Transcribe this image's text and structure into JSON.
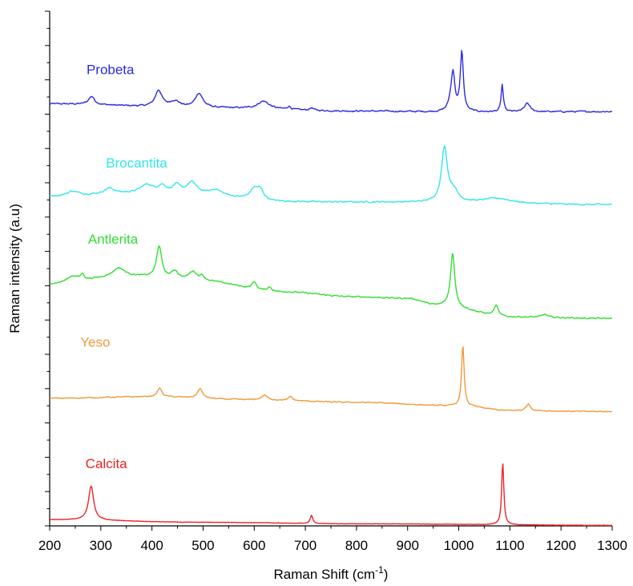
{
  "chart_data": {
    "type": "line",
    "xlabel": "Raman Shift (cm",
    "xlabel_sup": "-1",
    "xlabel_suffix": ")",
    "ylabel": "Raman intensity (a.u)",
    "xlim": [
      200,
      1300
    ],
    "ylim": [
      0,
      100
    ],
    "x_ticks": [
      200,
      300,
      400,
      500,
      600,
      700,
      800,
      900,
      1000,
      1100,
      1200,
      1300
    ],
    "y_tick_count": 31,
    "y_tick_labels": "none",
    "grid": false,
    "legend": "none",
    "stacked_offset": true,
    "series": [
      {
        "name": "Probeta",
        "color": "#2a2ae0",
        "baseline": [
          [
            200,
            82
          ],
          [
            500,
            81.2
          ],
          [
            800,
            80.6
          ],
          [
            1000,
            80.4
          ],
          [
            1300,
            80.5
          ]
        ],
        "peaks": [
          [
            282,
            1.6,
            7
          ],
          [
            413,
            3.2,
            8
          ],
          [
            445,
            1.2,
            12
          ],
          [
            492,
            2.8,
            9
          ],
          [
            618,
            1.5,
            14
          ],
          [
            668,
            0.6,
            4
          ],
          [
            712,
            0.5,
            4
          ],
          [
            985,
            2.0,
            6
          ],
          [
            989,
            6.5,
            4
          ],
          [
            1006,
            11.6,
            3.5
          ],
          [
            1085,
            5.3,
            2.5
          ],
          [
            1134,
            1.7,
            6
          ]
        ],
        "noise": 0.25
      },
      {
        "name": "Brocantita",
        "color": "#33e5ee",
        "baseline": [
          [
            200,
            64
          ],
          [
            350,
            64.5
          ],
          [
            500,
            64.3
          ],
          [
            640,
            63
          ],
          [
            800,
            62.9
          ],
          [
            1300,
            62.4
          ]
        ],
        "peaks": [
          [
            245,
            0.9,
            14
          ],
          [
            317,
            1.1,
            12
          ],
          [
            390,
            1.7,
            16
          ],
          [
            420,
            1.4,
            10
          ],
          [
            448,
            1.6,
            9
          ],
          [
            478,
            2.3,
            12
          ],
          [
            525,
            1.0,
            14
          ],
          [
            600,
            2.0,
            10
          ],
          [
            612,
            1.8,
            8
          ],
          [
            972,
            10.5,
            7
          ],
          [
            990,
            2.0,
            10
          ],
          [
            1075,
            1.0,
            35
          ]
        ],
        "noise": 0.22
      },
      {
        "name": "Antlerita",
        "color": "#33dd33",
        "baseline": [
          [
            200,
            47
          ],
          [
            350,
            48.5
          ],
          [
            500,
            47.5
          ],
          [
            650,
            45.5
          ],
          [
            800,
            44.5
          ],
          [
            900,
            44.2
          ],
          [
            960,
            42.8
          ],
          [
            1100,
            40.6
          ],
          [
            1300,
            40.3
          ]
        ],
        "peaks": [
          [
            245,
            1.2,
            14
          ],
          [
            264,
            1.0,
            4
          ],
          [
            335,
            1.6,
            14
          ],
          [
            414,
            6.2,
            6
          ],
          [
            445,
            1.6,
            8
          ],
          [
            480,
            1.8,
            10
          ],
          [
            498,
            0.9,
            5
          ],
          [
            600,
            1.4,
            5
          ],
          [
            630,
            0.8,
            5
          ],
          [
            988,
            10.4,
            5
          ],
          [
            1073,
            2.0,
            5
          ],
          [
            1168,
            0.6,
            6
          ]
        ],
        "noise": 0.22
      },
      {
        "name": "Yeso",
        "color": "#f09a3a",
        "baseline": [
          [
            200,
            24.8
          ],
          [
            400,
            25.1
          ],
          [
            600,
            24.5
          ],
          [
            800,
            24
          ],
          [
            1000,
            23.3
          ],
          [
            1100,
            22.4
          ],
          [
            1300,
            22.2
          ]
        ],
        "peaks": [
          [
            415,
            1.7,
            5
          ],
          [
            494,
            1.8,
            6
          ],
          [
            620,
            0.9,
            7
          ],
          [
            671,
            0.8,
            4
          ],
          [
            1008,
            11.8,
            3
          ],
          [
            1136,
            1.3,
            5
          ]
        ],
        "noise": 0.18
      },
      {
        "name": "Calcita",
        "color": "#ee2222",
        "baseline": [
          [
            200,
            1.2
          ],
          [
            500,
            0.7
          ],
          [
            800,
            0.4
          ],
          [
            1300,
            0.1
          ]
        ],
        "peaks": [
          [
            281,
            6.6,
            6
          ],
          [
            712,
            1.6,
            3
          ],
          [
            1086,
            12.3,
            2.5
          ]
        ],
        "noise": 0.05
      }
    ],
    "labels": [
      {
        "text": "Probeta",
        "color": "#2a2ae0",
        "x": 272,
        "y": 87.8
      },
      {
        "text": "Brocantita",
        "color": "#33e5ee",
        "x": 310,
        "y": 69.6
      },
      {
        "text": "Antlerita",
        "color": "#33dd33",
        "x": 275,
        "y": 54.8
      },
      {
        "text": "Yeso",
        "color": "#f09a3a",
        "x": 260,
        "y": 34.8
      },
      {
        "text": "Calcita",
        "color": "#ee2222",
        "x": 270,
        "y": 11.2
      }
    ]
  }
}
